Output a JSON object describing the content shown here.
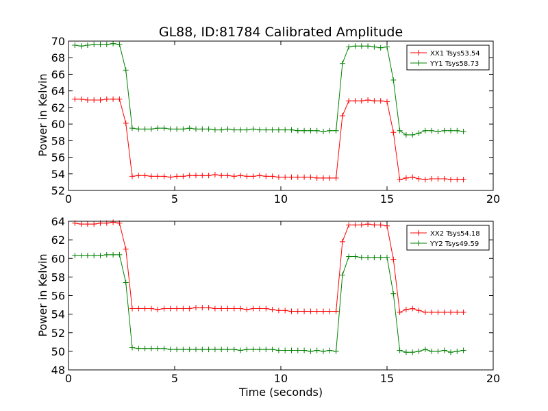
{
  "chart_data": [
    {
      "type": "line",
      "title": "GL88, ID:81784 Calibrated Amplitude",
      "xlabel": "",
      "ylabel": "Power in Kelvin",
      "xlim": [
        0,
        20
      ],
      "ylim": [
        52,
        70
      ],
      "xticks": [
        "0",
        "5",
        "10",
        "15",
        "20"
      ],
      "yticks": [
        "52",
        "54",
        "56",
        "58",
        "60",
        "62",
        "64",
        "66",
        "68",
        "70"
      ],
      "legend": "top-right",
      "grid": false,
      "x": [
        0.3,
        0.6,
        0.9,
        1.2,
        1.5,
        1.8,
        2.1,
        2.4,
        2.7,
        3.0,
        3.3,
        3.6,
        3.9,
        4.2,
        4.5,
        4.8,
        5.1,
        5.4,
        5.7,
        6.0,
        6.3,
        6.6,
        6.9,
        7.2,
        7.5,
        7.8,
        8.1,
        8.4,
        8.7,
        9.0,
        9.3,
        9.6,
        9.9,
        10.2,
        10.5,
        10.8,
        11.1,
        11.4,
        11.7,
        12.0,
        12.3,
        12.6,
        12.9,
        13.2,
        13.5,
        13.8,
        14.1,
        14.4,
        14.7,
        15.0,
        15.3,
        15.6,
        15.9,
        16.2,
        16.5,
        16.8,
        17.1,
        17.4,
        17.7,
        18.0,
        18.3,
        18.6
      ],
      "series": [
        {
          "name": "XX1 Tsys53.54",
          "color": "#ff0000",
          "values": [
            63.0,
            63.0,
            62.9,
            62.9,
            62.9,
            63.0,
            63.0,
            63.0,
            60.1,
            53.7,
            53.8,
            53.8,
            53.7,
            53.7,
            53.7,
            53.6,
            53.7,
            53.7,
            53.8,
            53.8,
            53.8,
            53.8,
            53.9,
            53.8,
            53.8,
            53.7,
            53.8,
            53.7,
            53.7,
            53.8,
            53.7,
            53.7,
            53.6,
            53.6,
            53.6,
            53.6,
            53.6,
            53.6,
            53.5,
            53.5,
            53.5,
            53.5,
            61.0,
            62.8,
            62.8,
            62.8,
            62.9,
            62.8,
            62.8,
            62.7,
            59.0,
            53.3,
            53.5,
            53.6,
            53.4,
            53.3,
            53.4,
            53.4,
            53.4,
            53.3,
            53.3,
            53.3
          ]
        },
        {
          "name": "YY1 Tsys58.73",
          "color": "#008000",
          "values": [
            69.5,
            69.4,
            69.5,
            69.6,
            69.6,
            69.6,
            69.7,
            69.6,
            66.5,
            59.5,
            59.4,
            59.4,
            59.4,
            59.5,
            59.5,
            59.4,
            59.4,
            59.4,
            59.5,
            59.4,
            59.4,
            59.4,
            59.3,
            59.3,
            59.4,
            59.3,
            59.3,
            59.3,
            59.4,
            59.3,
            59.3,
            59.3,
            59.3,
            59.3,
            59.3,
            59.2,
            59.2,
            59.2,
            59.2,
            59.1,
            59.2,
            59.2,
            67.3,
            69.3,
            69.4,
            69.4,
            69.4,
            69.3,
            69.2,
            69.3,
            65.3,
            59.2,
            58.7,
            58.7,
            58.9,
            59.2,
            59.2,
            59.1,
            59.2,
            59.2,
            59.2,
            59.1
          ]
        }
      ]
    },
    {
      "type": "line",
      "title": "",
      "xlabel": "Time (seconds)",
      "ylabel": "Power in Kelvin",
      "xlim": [
        0,
        20
      ],
      "ylim": [
        48,
        64
      ],
      "xticks": [
        "0",
        "5",
        "10",
        "15",
        "20"
      ],
      "yticks": [
        "48",
        "50",
        "52",
        "54",
        "56",
        "58",
        "60",
        "62",
        "64"
      ],
      "legend": "top-right",
      "grid": false,
      "x": [
        0.3,
        0.6,
        0.9,
        1.2,
        1.5,
        1.8,
        2.1,
        2.4,
        2.7,
        3.0,
        3.3,
        3.6,
        3.9,
        4.2,
        4.5,
        4.8,
        5.1,
        5.4,
        5.7,
        6.0,
        6.3,
        6.6,
        6.9,
        7.2,
        7.5,
        7.8,
        8.1,
        8.4,
        8.7,
        9.0,
        9.3,
        9.6,
        9.9,
        10.2,
        10.5,
        10.8,
        11.1,
        11.4,
        11.7,
        12.0,
        12.3,
        12.6,
        12.9,
        13.2,
        13.5,
        13.8,
        14.1,
        14.4,
        14.7,
        15.0,
        15.3,
        15.6,
        15.9,
        16.2,
        16.5,
        16.8,
        17.1,
        17.4,
        17.7,
        18.0,
        18.3,
        18.6
      ],
      "series": [
        {
          "name": "XX2 Tsys54.18",
          "color": "#ff0000",
          "values": [
            63.8,
            63.7,
            63.7,
            63.7,
            63.8,
            63.8,
            63.9,
            63.8,
            61.0,
            54.6,
            54.6,
            54.6,
            54.6,
            54.5,
            54.6,
            54.6,
            54.6,
            54.6,
            54.6,
            54.7,
            54.7,
            54.7,
            54.6,
            54.6,
            54.6,
            54.6,
            54.6,
            54.5,
            54.6,
            54.6,
            54.6,
            54.5,
            54.4,
            54.4,
            54.3,
            54.3,
            54.3,
            54.3,
            54.3,
            54.3,
            54.3,
            54.3,
            61.8,
            63.6,
            63.6,
            63.6,
            63.7,
            63.6,
            63.6,
            63.5,
            59.9,
            54.2,
            54.5,
            54.6,
            54.4,
            54.2,
            54.2,
            54.2,
            54.2,
            54.2,
            54.2,
            54.2
          ]
        },
        {
          "name": "YY2 Tsys49.59",
          "color": "#008000",
          "values": [
            60.3,
            60.3,
            60.3,
            60.3,
            60.3,
            60.4,
            60.4,
            60.4,
            57.4,
            50.4,
            50.3,
            50.3,
            50.3,
            50.3,
            50.3,
            50.2,
            50.2,
            50.2,
            50.2,
            50.2,
            50.2,
            50.2,
            50.2,
            50.2,
            50.2,
            50.2,
            50.1,
            50.2,
            50.2,
            50.2,
            50.2,
            50.2,
            50.1,
            50.1,
            50.1,
            50.1,
            50.1,
            50.0,
            50.1,
            50.0,
            50.1,
            50.0,
            58.2,
            60.2,
            60.2,
            60.1,
            60.1,
            60.1,
            60.1,
            60.1,
            56.2,
            50.1,
            49.9,
            49.9,
            50.0,
            50.2,
            50.0,
            50.0,
            50.1,
            49.9,
            50.0,
            50.1
          ]
        }
      ]
    }
  ]
}
